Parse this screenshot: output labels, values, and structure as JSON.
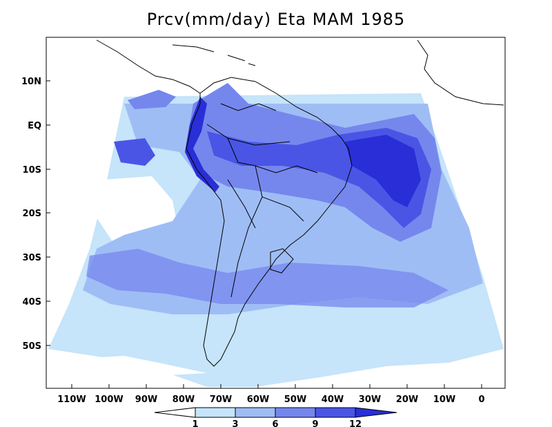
{
  "title": "Prcv(mm/day) Eta MAM 1985",
  "y_ticks": [
    "10N",
    "EQ",
    "10S",
    "20S",
    "30S",
    "40S",
    "50S"
  ],
  "x_ticks": [
    "110W",
    "100W",
    "90W",
    "80W",
    "70W",
    "60W",
    "50W",
    "40W",
    "30W",
    "20W",
    "10W",
    "0"
  ],
  "colorbar": {
    "labels": [
      "1",
      "3",
      "6",
      "9",
      "12"
    ],
    "colors": [
      "#ffffff",
      "#c6e4fa",
      "#9fbdf5",
      "#7587ed",
      "#4a55e6",
      "#2a2ed6"
    ]
  },
  "colors": {
    "very_light": "#c6e4fa",
    "light": "#9fbdf5",
    "medium": "#7587ed",
    "strong": "#4a55e6",
    "deep": "#2a2ed6"
  }
}
